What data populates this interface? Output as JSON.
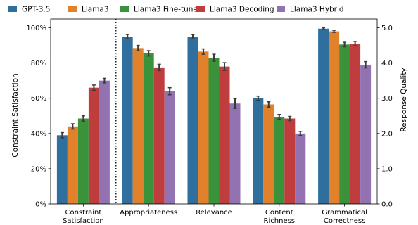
{
  "chart_data": {
    "type": "bar",
    "categories": [
      [
        "Constraint",
        "Satisfaction"
      ],
      [
        "Appropriateness"
      ],
      [
        "Relevance"
      ],
      [
        "Content",
        "Richness"
      ],
      [
        "Grammatical",
        "Correctness"
      ]
    ],
    "series": [
      {
        "name": "GPT-3.5",
        "color": "#2e6f9e",
        "values": [
          39,
          95,
          95,
          60,
          99.5
        ],
        "errors": [
          1.5,
          1.2,
          1.2,
          1.2,
          0.5
        ]
      },
      {
        "name": "Llama3",
        "color": "#e1812c",
        "values": [
          44,
          88.5,
          86.5,
          56.5,
          98
        ],
        "errors": [
          1.5,
          1.5,
          1.5,
          1.5,
          0.6
        ]
      },
      {
        "name": "Llama3 Fine-tune",
        "color": "#3a923a",
        "values": [
          48.5,
          85.5,
          83,
          49.5,
          90.5
        ],
        "errors": [
          1.5,
          1.5,
          2.0,
          1.3,
          1.3
        ]
      },
      {
        "name": "Llama3 Decoding",
        "color": "#c03d3e",
        "values": [
          66,
          77.5,
          78,
          48.5,
          91
        ],
        "errors": [
          1.5,
          1.8,
          2.2,
          1.2,
          1.3
        ]
      },
      {
        "name": "Llama3 Hybrid",
        "color": "#9372b2",
        "values": [
          70,
          64,
          57,
          40,
          79
        ],
        "errors": [
          1.3,
          2.0,
          2.8,
          1.2,
          1.8
        ]
      }
    ],
    "ylabel_left": "Constraint Satisfaction",
    "ylabel_right": "Response Quality",
    "ylim_left": [
      0,
      105
    ],
    "ylim_right": [
      0,
      5.25
    ],
    "yticks_left": [
      "0%",
      "20%",
      "40%",
      "60%",
      "80%",
      "100%"
    ],
    "yticks_right": [
      "0.0",
      "1.0",
      "2.0",
      "3.0",
      "4.0",
      "5.0"
    ],
    "yticks_values": [
      0,
      20,
      40,
      60,
      80,
      100
    ],
    "separator_after_category": 0,
    "grid": false,
    "legend_position": "top"
  }
}
